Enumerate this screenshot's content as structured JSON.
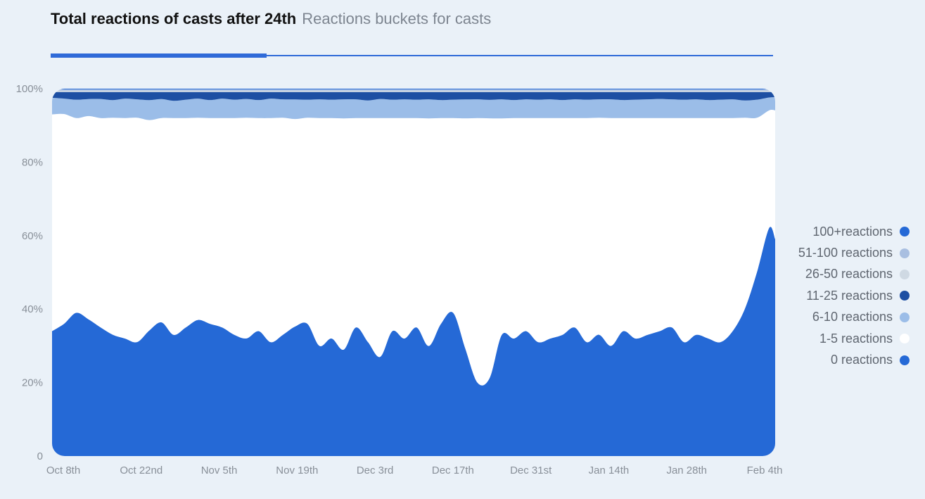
{
  "header": {
    "title": "Total reactions of casts after 24th",
    "subtitle": "Reactions buckets for casts"
  },
  "chart_data": {
    "type": "area",
    "stacked": true,
    "normalized": true,
    "title": "Total reactions of casts after 24th",
    "subtitle": "Reactions buckets for casts",
    "xlabel": "",
    "ylabel": "",
    "ylim": [
      0,
      100
    ],
    "y_ticks": [
      "0",
      "20%",
      "40%",
      "60%",
      "80%",
      "100%"
    ],
    "x_ticks": [
      "Oct 8th",
      "Oct 22nd",
      "Nov 5th",
      "Nov 19th",
      "Dec 3rd",
      "Dec 17th",
      "Dec 31st",
      "Jan 14th",
      "Jan 28th",
      "Feb 4th"
    ],
    "x": [
      "2023-10-08",
      "2023-10-10",
      "2023-10-12",
      "2023-10-14",
      "2023-10-16",
      "2023-10-18",
      "2023-10-20",
      "2023-10-22",
      "2023-10-24",
      "2023-10-26",
      "2023-10-28",
      "2023-10-30",
      "2023-11-01",
      "2023-11-03",
      "2023-11-05",
      "2023-11-07",
      "2023-11-09",
      "2023-11-11",
      "2023-11-13",
      "2023-11-15",
      "2023-11-17",
      "2023-11-19",
      "2023-11-21",
      "2023-11-23",
      "2023-11-25",
      "2023-11-27",
      "2023-11-29",
      "2023-12-01",
      "2023-12-03",
      "2023-12-05",
      "2023-12-07",
      "2023-12-09",
      "2023-12-11",
      "2023-12-13",
      "2023-12-15",
      "2023-12-17",
      "2023-12-19",
      "2023-12-21",
      "2023-12-23",
      "2023-12-25",
      "2023-12-27",
      "2023-12-29",
      "2023-12-31",
      "2024-01-02",
      "2024-01-04",
      "2024-01-06",
      "2024-01-08",
      "2024-01-10",
      "2024-01-12",
      "2024-01-14",
      "2024-01-16",
      "2024-01-18",
      "2024-01-20",
      "2024-01-22",
      "2024-01-24",
      "2024-01-26",
      "2024-01-28",
      "2024-01-30",
      "2024-02-01",
      "2024-02-03",
      "2024-02-04"
    ],
    "series": [
      {
        "name": "0 reactions",
        "color": "#2569d6",
        "values": [
          34,
          36,
          39,
          37,
          35,
          33,
          32,
          31,
          34,
          36,
          33,
          35,
          37,
          36,
          35,
          33,
          32,
          34,
          31,
          33,
          35,
          36,
          30,
          32,
          29,
          35,
          31,
          27,
          34,
          32,
          35,
          30,
          36,
          39,
          29,
          20,
          21,
          33,
          32,
          34,
          31,
          32,
          33,
          35,
          31,
          33,
          30,
          34,
          32,
          33,
          34,
          35,
          31,
          33,
          32,
          31,
          34,
          40,
          50,
          62,
          59
        ]
      },
      {
        "name": "1-5 reactions",
        "color": "#ffffff",
        "values": [
          59,
          57,
          53,
          55,
          57,
          59,
          60,
          61,
          57,
          55,
          59,
          57,
          55,
          56,
          57,
          59,
          60,
          58,
          61,
          59,
          56,
          56,
          62,
          60,
          63,
          57,
          61,
          65,
          58,
          60,
          57,
          62,
          56,
          53,
          62,
          72,
          70,
          59,
          60,
          58,
          61,
          60,
          59,
          57,
          61,
          59,
          62,
          58,
          60,
          59,
          58,
          57,
          61,
          59,
          60,
          61,
          58,
          52,
          42,
          32,
          35
        ]
      },
      {
        "name": "6-10 reactions",
        "color": "#9bbde8",
        "values": [
          4.5,
          4.2,
          5.0,
          4.6,
          5.2,
          4.8,
          5.3,
          5.0,
          5.4,
          5.1,
          4.7,
          5.0,
          5.2,
          4.9,
          5.3,
          5.0,
          5.1,
          4.9,
          5.3,
          5.0,
          5.3,
          4.9,
          5.1,
          5.0,
          5.2,
          5.1,
          4.8,
          5.2,
          5.0,
          5.1,
          5.0,
          5.2,
          4.9,
          5.0,
          5.1,
          5.1,
          5.0,
          5.2,
          4.9,
          5.1,
          5.0,
          5.1,
          4.9,
          5.1,
          5.0,
          5.0,
          5.1,
          4.9,
          5.0,
          5.1,
          5.2,
          5.1,
          5.0,
          5.1,
          4.9,
          5.0,
          5.1,
          4.7,
          4.9,
          3.5,
          3.6
        ]
      },
      {
        "name": "11-25 reactions",
        "color": "#1d4fa3",
        "values": [
          1.6,
          1.8,
          2.1,
          1.9,
          1.9,
          2.2,
          1.8,
          2.0,
          2.2,
          1.9,
          2.4,
          2.1,
          1.8,
          2.2,
          1.8,
          2.1,
          1.9,
          2.2,
          1.8,
          2.0,
          2.0,
          2.1,
          2.0,
          2.1,
          2.0,
          2.0,
          2.3,
          1.9,
          2.1,
          2.0,
          2.1,
          2.0,
          2.2,
          2.1,
          2.0,
          2.0,
          2.1,
          2.0,
          2.2,
          2.0,
          2.1,
          2.0,
          2.2,
          2.0,
          2.1,
          2.0,
          2.0,
          2.2,
          2.1,
          2.0,
          1.9,
          2.0,
          2.1,
          2.0,
          2.2,
          2.1,
          2.0,
          2.3,
          2.1,
          1.5,
          1.4
        ]
      },
      {
        "name": "26-50 reactions",
        "color": "#cfd9e3",
        "values": [
          0.4,
          0.4,
          0.4,
          0.4,
          0.4,
          0.4,
          0.4,
          0.4,
          0.4,
          0.4,
          0.4,
          0.4,
          0.4,
          0.4,
          0.4,
          0.4,
          0.4,
          0.4,
          0.4,
          0.4,
          0.4,
          0.4,
          0.4,
          0.4,
          0.4,
          0.4,
          0.4,
          0.4,
          0.4,
          0.4,
          0.4,
          0.4,
          0.4,
          0.4,
          0.4,
          0.4,
          0.4,
          0.4,
          0.4,
          0.4,
          0.4,
          0.4,
          0.4,
          0.4,
          0.4,
          0.4,
          0.4,
          0.4,
          0.4,
          0.4,
          0.4,
          0.4,
          0.4,
          0.4,
          0.4,
          0.4,
          0.4,
          0.4,
          0.4,
          0.4,
          0.4
        ]
      },
      {
        "name": "51-100 reactions",
        "color": "#a9bfe1",
        "values": [
          0.3,
          0.3,
          0.3,
          0.3,
          0.3,
          0.3,
          0.3,
          0.3,
          0.3,
          0.3,
          0.3,
          0.3,
          0.3,
          0.3,
          0.3,
          0.3,
          0.3,
          0.3,
          0.3,
          0.3,
          0.3,
          0.3,
          0.3,
          0.3,
          0.3,
          0.3,
          0.3,
          0.3,
          0.3,
          0.3,
          0.3,
          0.3,
          0.3,
          0.3,
          0.3,
          0.3,
          0.3,
          0.3,
          0.3,
          0.3,
          0.3,
          0.3,
          0.3,
          0.3,
          0.3,
          0.3,
          0.3,
          0.3,
          0.3,
          0.3,
          0.3,
          0.3,
          0.3,
          0.3,
          0.3,
          0.3,
          0.3,
          0.3,
          0.3,
          0.3,
          0.3
        ]
      },
      {
        "name": "100+reactions",
        "color": "#2569d6",
        "values": [
          0.2,
          0.2,
          0.2,
          0.2,
          0.2,
          0.2,
          0.2,
          0.2,
          0.2,
          0.2,
          0.2,
          0.2,
          0.2,
          0.2,
          0.2,
          0.2,
          0.2,
          0.2,
          0.2,
          0.2,
          0.2,
          0.2,
          0.2,
          0.2,
          0.2,
          0.2,
          0.2,
          0.2,
          0.2,
          0.2,
          0.2,
          0.2,
          0.2,
          0.2,
          0.2,
          0.2,
          0.2,
          0.2,
          0.2,
          0.2,
          0.2,
          0.2,
          0.2,
          0.2,
          0.2,
          0.2,
          0.2,
          0.2,
          0.2,
          0.2,
          0.2,
          0.2,
          0.2,
          0.2,
          0.2,
          0.2,
          0.2,
          0.2,
          0.2,
          0.2,
          0.2
        ]
      }
    ],
    "legend": [
      {
        "label": "100+reactions",
        "color": "#2569d6"
      },
      {
        "label": "51-100 reactions",
        "color": "#a9bfe1"
      },
      {
        "label": "26-50 reactions",
        "color": "#cfd9e3"
      },
      {
        "label": "11-25 reactions",
        "color": "#1d4fa3"
      },
      {
        "label": "6-10 reactions",
        "color": "#9bbde8"
      },
      {
        "label": "1-5 reactions",
        "color": "#ffffff"
      },
      {
        "label": "0 reactions",
        "color": "#2569d6"
      }
    ],
    "legend_position": "right",
    "grid": false
  }
}
